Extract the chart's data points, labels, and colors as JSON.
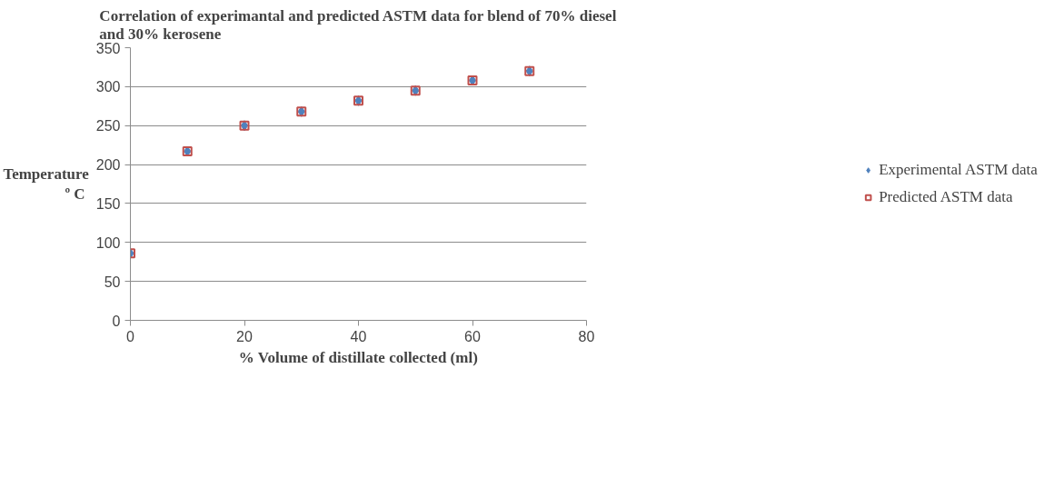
{
  "chart_data": {
    "type": "scatter",
    "title": "Correlation of experimantal and predicted ASTM data for blend of 70% diesel\nand 30% kerosene",
    "xlabel": "% Volume of distillate collected (ml)",
    "ylabel": "Temperature\n º C",
    "x": [
      0,
      10,
      20,
      30,
      40,
      50,
      60,
      70
    ],
    "series": [
      {
        "name": "Experimental ASTM data",
        "color": "#4f81bd",
        "marker": "diamond",
        "values": [
          86,
          217,
          250,
          268,
          282,
          295,
          308,
          320
        ]
      },
      {
        "name": "Predicted ASTM data",
        "color": "#c0504d",
        "marker": "square",
        "values": [
          86,
          217,
          250,
          268,
          282,
          295,
          308,
          320
        ]
      }
    ],
    "xlim": [
      0,
      80
    ],
    "xticks": [
      0,
      20,
      40,
      60,
      80
    ],
    "ylim": [
      0,
      350
    ],
    "yticks": [
      0,
      50,
      100,
      150,
      200,
      250,
      300,
      350
    ],
    "grid": "y",
    "legend": "right"
  }
}
